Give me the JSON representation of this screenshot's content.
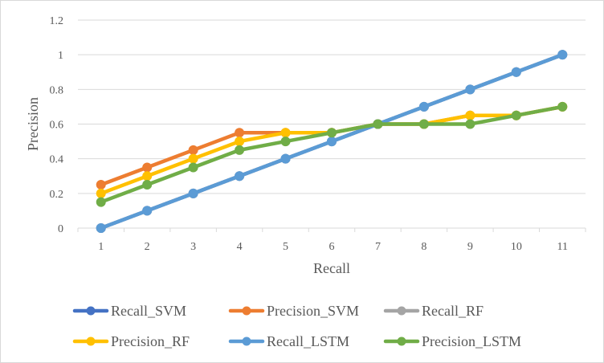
{
  "chart_data": {
    "type": "line",
    "xlabel": "Recall",
    "ylabel": "Precision",
    "categories": [
      "1",
      "2",
      "3",
      "4",
      "5",
      "6",
      "7",
      "8",
      "9",
      "10",
      "11"
    ],
    "ylim": [
      0,
      1.2
    ],
    "yticks": [
      "0",
      "0.2",
      "0.4",
      "0.6",
      "0.8",
      "1",
      "1.2"
    ],
    "grid": true,
    "legend_position": "bottom",
    "series": [
      {
        "name": "Recall_SVM",
        "color": "#4472c4",
        "values": [
          0,
          0.1,
          0.2,
          0.3,
          0.4,
          0.5,
          0.6,
          0.7,
          0.8,
          0.9,
          1.0
        ]
      },
      {
        "name": "Precision_SVM",
        "color": "#ed7d31",
        "values": [
          0.25,
          0.35,
          0.45,
          0.55,
          0.55,
          0.55,
          0.6,
          0.6,
          0.65,
          0.65,
          0.7
        ]
      },
      {
        "name": "Recall_RF",
        "color": "#a5a5a5",
        "values": [
          0,
          0.1,
          0.2,
          0.3,
          0.4,
          0.5,
          0.6,
          0.7,
          0.8,
          0.9,
          1.0
        ]
      },
      {
        "name": "Precision_RF",
        "color": "#ffc000",
        "values": [
          0.2,
          0.3,
          0.4,
          0.5,
          0.55,
          0.55,
          0.6,
          0.6,
          0.65,
          0.65,
          0.7
        ]
      },
      {
        "name": "Recall_LSTM",
        "color": "#5b9bd5",
        "values": [
          0,
          0.1,
          0.2,
          0.3,
          0.4,
          0.5,
          0.6,
          0.7,
          0.8,
          0.9,
          1.0
        ]
      },
      {
        "name": "Precision_LSTM",
        "color": "#70ad47",
        "values": [
          0.15,
          0.25,
          0.35,
          0.45,
          0.5,
          0.55,
          0.6,
          0.6,
          0.6,
          0.65,
          0.7
        ]
      }
    ]
  }
}
